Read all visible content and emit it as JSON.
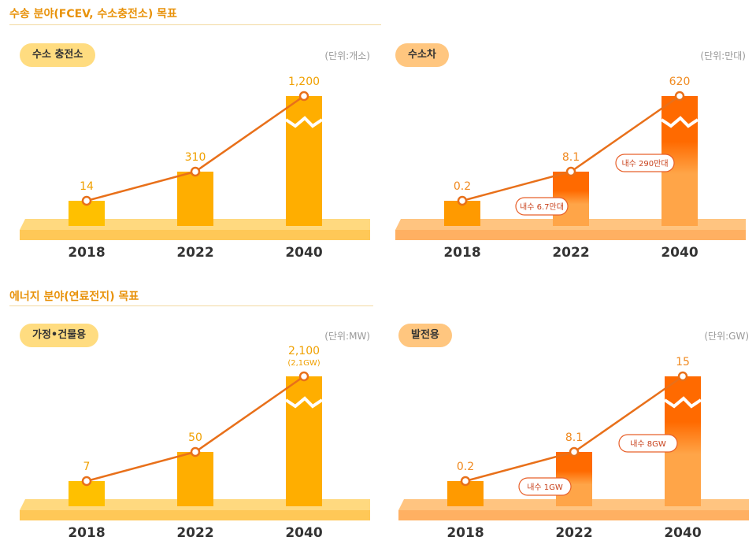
{
  "sections": [
    {
      "title": "수송 분야(FCEV, 수소충전소) 목표"
    },
    {
      "title": "에너지 분야(연료전지) 목표"
    }
  ],
  "chart_data": [
    {
      "type": "bar",
      "title": "수소 충전소",
      "unit": "(단위:개소)",
      "categories": [
        "2018",
        "2022",
        "2040"
      ],
      "values": [
        14,
        310,
        1200
      ],
      "value_labels": [
        "14",
        "310",
        "1,200"
      ],
      "sub_labels": [
        "",
        "",
        ""
      ],
      "callouts": [
        "",
        ""
      ],
      "line_overlay": true,
      "axis_break_on": "2040",
      "bar_colors": [
        "#FFC000",
        "#FFAE00",
        "#FFAE00"
      ],
      "pill_color": "#FFDC80",
      "platform_colors": [
        "#FFD97F",
        "#FFC857"
      ],
      "label_color": "#F0A000"
    },
    {
      "type": "bar",
      "title": "수소차",
      "unit": "(단위:만대)",
      "categories": [
        "2018",
        "2022",
        "2040"
      ],
      "values": [
        0.2,
        8.1,
        620
      ],
      "value_labels": [
        "0.2",
        "8.1",
        "620"
      ],
      "sub_labels": [
        "",
        "",
        ""
      ],
      "callouts": [
        "내수 6.7만대",
        "내수 290만대"
      ],
      "line_overlay": true,
      "axis_break_on": "2040",
      "bar_colors": [
        "#FF9A00",
        "#FF6A00",
        "#FF6A00"
      ],
      "pill_color": "#FFC67F",
      "platform_colors": [
        "#FFC480",
        "#FFB062"
      ],
      "label_color": "#F08A20"
    },
    {
      "type": "bar",
      "title": "가정•건물용",
      "unit": "(단위:MW)",
      "categories": [
        "2018",
        "2022",
        "2040"
      ],
      "values": [
        7,
        50,
        2100
      ],
      "value_labels": [
        "7",
        "50",
        "2,100"
      ],
      "sub_labels": [
        "",
        "",
        "(2,1GW)"
      ],
      "callouts": [
        "",
        ""
      ],
      "line_overlay": true,
      "axis_break_on": "2040",
      "bar_colors": [
        "#FFC000",
        "#FFAE00",
        "#FFAE00"
      ],
      "pill_color": "#FFDC80",
      "platform_colors": [
        "#FFD97F",
        "#FFC857"
      ],
      "label_color": "#F0A000"
    },
    {
      "type": "bar",
      "title": "발전용",
      "unit": "(단위:GW)",
      "categories": [
        "2018",
        "2022",
        "2040"
      ],
      "values": [
        0.2,
        8.1,
        15
      ],
      "value_labels": [
        "0.2",
        "8.1",
        "15"
      ],
      "sub_labels": [
        "",
        "",
        ""
      ],
      "callouts": [
        "내수 1GW",
        "내수 8GW"
      ],
      "line_overlay": true,
      "axis_break_on": "2040",
      "bar_colors": [
        "#FF9A00",
        "#FF6A00",
        "#FF6A00"
      ],
      "pill_color": "#FFC67F",
      "platform_colors": [
        "#FFC480",
        "#FFB062"
      ],
      "label_color": "#F08A20"
    }
  ],
  "line_color": "#E8701A"
}
